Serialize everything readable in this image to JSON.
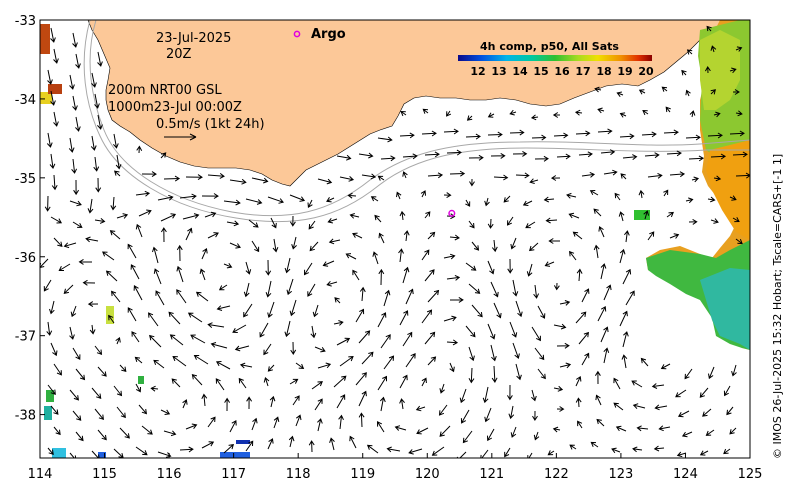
{
  "map": {
    "date_line1": "23-Jul-2025",
    "date_line2": "20Z",
    "argo_label": "Argo",
    "depth_line1": "200m  NRT00 GSL",
    "depth_line2": "1000m23-Jul 00:00Z",
    "vector_scale_label": "0.5m/s (1kt 24h)",
    "colorbar_title": "4h comp, p50, All Sats",
    "colorbar_ticks": [
      "12",
      "13",
      "14",
      "15",
      "16",
      "17",
      "18",
      "19",
      "20"
    ],
    "credit": "© IMOS 26-Jul-2025 15:32 Hobart; Tscale=CARS+[-1 1]",
    "land_color": "#fcc898",
    "argo_color": "#e000e0"
  },
  "chart_data": {
    "type": "map",
    "x_ticks": [
      "114",
      "115",
      "116",
      "117",
      "118",
      "119",
      "120",
      "121",
      "122",
      "123",
      "124",
      "125"
    ],
    "y_ticks": [
      "-33",
      "-34",
      "-35",
      "-36",
      "-37",
      "-38"
    ],
    "xlim": [
      114,
      125
    ],
    "ylim": [
      -38.55,
      -33
    ],
    "argo_float": {
      "lon": 120.38,
      "lat": -35.45
    }
  }
}
